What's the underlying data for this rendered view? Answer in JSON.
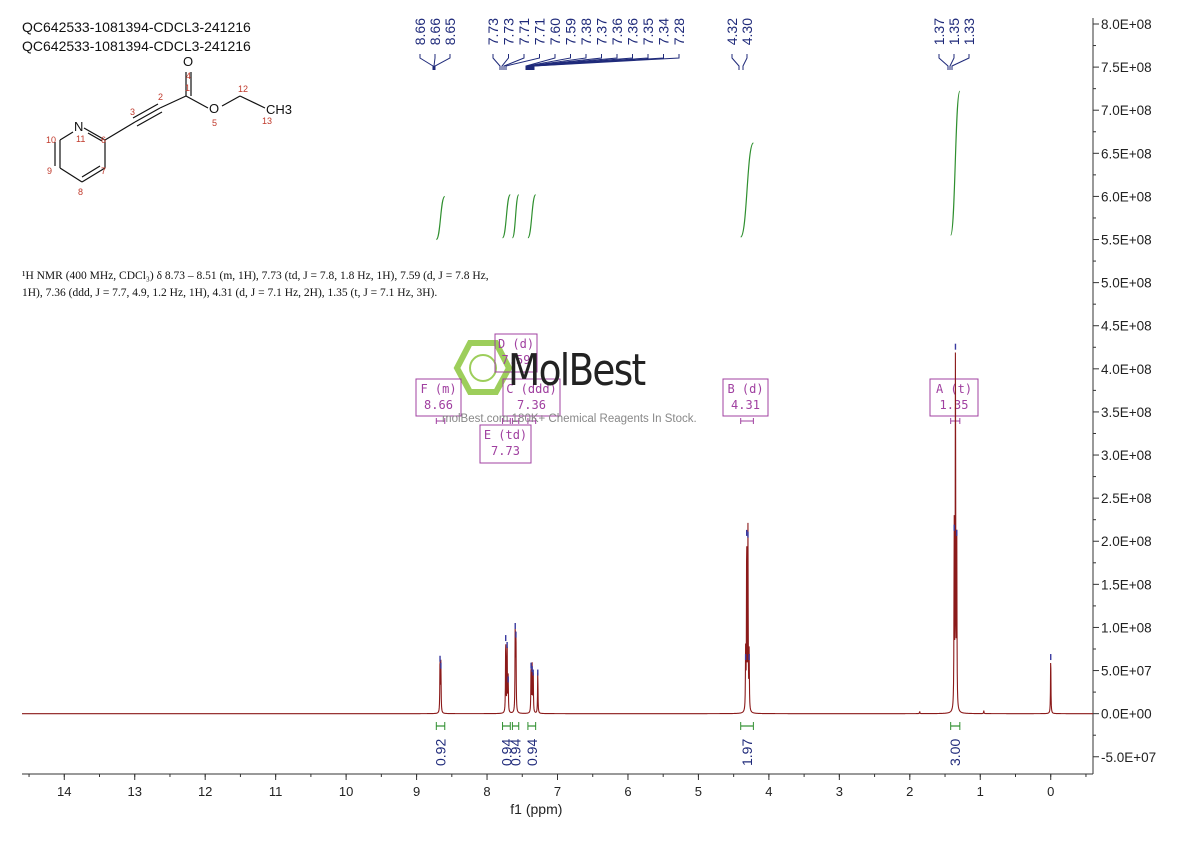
{
  "header": {
    "line1": "QC642533-1081394-CDCL3-241216",
    "line2": "QC642533-1081394-CDCL3-241216"
  },
  "molecule": {
    "atoms": [
      "O",
      "O",
      "N",
      "CH3"
    ],
    "numbers": [
      "4",
      "1",
      "2",
      "3",
      "5",
      "12",
      "13",
      "10",
      "11",
      "6",
      "9",
      "7",
      "8"
    ]
  },
  "nmr_description": {
    "line1": "¹H NMR (400 MHz, CDCl₃) δ 8.73 – 8.51 (m, 1H), 7.73 (td, J = 7.8, 1.8 Hz, 1H), 7.59 (d, J = 7.8 Hz,",
    "line2": "1H), 7.36 (ddd, J = 7.7, 4.9, 1.2 Hz, 1H), 4.31 (d, J = 7.1 Hz, 2H), 1.35 (t, J = 7.1 Hz, 3H)."
  },
  "watermark": {
    "brand": "MolBest",
    "tagline": "molBest.com 180K+ Chemical Reagents In Stock."
  },
  "colors": {
    "spectrum": "#8b1a1a",
    "integral": "#2f8f2f",
    "peak_label": "#1f2a7a",
    "multiplet_box": "#a040a0",
    "watermark_green": "#8dc63f"
  },
  "chart_data": {
    "type": "line",
    "xlabel": "f1 (ppm)",
    "xlim": [
      14.6,
      -0.6
    ],
    "ylim": [
      -70000000,
      800000000
    ],
    "x_ticks": [
      14,
      13,
      12,
      11,
      10,
      9,
      8,
      7,
      6,
      5,
      4,
      3,
      2,
      1,
      0
    ],
    "y_ticks": [
      800000000,
      750000000,
      700000000,
      650000000,
      600000000,
      550000000,
      500000000,
      450000000,
      400000000,
      350000000,
      300000000,
      250000000,
      200000000,
      150000000,
      100000000,
      50000000,
      0,
      -50000000
    ],
    "y_tick_labels": [
      "8.0E+08",
      "7.5E+08",
      "7.0E+08",
      "6.5E+08",
      "6.0E+08",
      "5.5E+08",
      "5.0E+08",
      "4.5E+08",
      "4.0E+08",
      "3.5E+08",
      "3.0E+08",
      "2.5E+08",
      "2.0E+08",
      "1.5E+08",
      "1.0E+08",
      "5.0E+07",
      "0.0E+00",
      "-5.0E+07"
    ],
    "peaks": [
      {
        "ppm": 8.667,
        "height": 66000000
      },
      {
        "ppm": 8.655,
        "height": 58000000
      },
      {
        "ppm": 7.735,
        "height": 90000000
      },
      {
        "ppm": 7.715,
        "height": 82000000
      },
      {
        "ppm": 7.7,
        "height": 42000000
      },
      {
        "ppm": 7.6,
        "height": 104000000
      },
      {
        "ppm": 7.59,
        "height": 94000000
      },
      {
        "ppm": 7.375,
        "height": 58000000
      },
      {
        "ppm": 7.36,
        "height": 54000000
      },
      {
        "ppm": 7.345,
        "height": 50000000
      },
      {
        "ppm": 7.28,
        "height": 50000000
      },
      {
        "ppm": 4.33,
        "height": 68000000
      },
      {
        "ppm": 4.315,
        "height": 212000000
      },
      {
        "ppm": 4.297,
        "height": 210000000
      },
      {
        "ppm": 4.28,
        "height": 68000000
      },
      {
        "ppm": 1.37,
        "height": 218000000
      },
      {
        "ppm": 1.352,
        "height": 428000000
      },
      {
        "ppm": 1.334,
        "height": 212000000
      },
      {
        "ppm": 1.86,
        "height": 2500000
      },
      {
        "ppm": 0.95,
        "height": 3500000
      },
      {
        "ppm": 0.0,
        "height": 68000000
      }
    ],
    "peak_labels_group1": [
      "8.66",
      "8.66",
      "8.65"
    ],
    "peak_labels_group2": [
      "7.73",
      "7.73",
      "7.71",
      "7.71",
      "7.60",
      "7.59",
      "7.38",
      "7.37",
      "7.36",
      "7.36",
      "7.35",
      "7.34",
      "7.28"
    ],
    "peak_labels_group3": [
      "4.32",
      "4.30"
    ],
    "peak_labels_group4": [
      "1.37",
      "1.35",
      "1.33"
    ],
    "integrals": [
      {
        "from": 8.72,
        "to": 8.6,
        "value": "0.92",
        "y_low": 550000000,
        "y_high": 600000000
      },
      {
        "from": 7.78,
        "to": 7.67,
        "value": "0.94",
        "y_low": 552000000,
        "y_high": 602000000
      },
      {
        "from": 7.64,
        "to": 7.55,
        "value": "0.94",
        "y_low": 552000000,
        "y_high": 602000000
      },
      {
        "from": 7.42,
        "to": 7.31,
        "value": "0.94",
        "y_low": 552000000,
        "y_high": 602000000
      },
      {
        "from": 4.4,
        "to": 4.22,
        "value": "1.97",
        "y_low": 553000000,
        "y_high": 662000000
      },
      {
        "from": 1.42,
        "to": 1.29,
        "value": "3.00",
        "y_low": 555000000,
        "y_high": 722000000
      }
    ],
    "multiplets": [
      {
        "label": "F (m)",
        "shift": "8.66",
        "ppm": 8.66,
        "from": 8.72,
        "to": 8.6
      },
      {
        "label": "D (d)",
        "shift": "7.59",
        "ppm": 7.59,
        "from": 7.64,
        "to": 7.55
      },
      {
        "label": "C (ddd)",
        "shift": "7.36",
        "ppm": 7.36,
        "from": 7.42,
        "to": 7.31
      },
      {
        "label": "E (td)",
        "shift": "7.73",
        "ppm": 7.73,
        "from": 7.78,
        "to": 7.67
      },
      {
        "label": "B (d)",
        "shift": "4.31",
        "ppm": 4.31,
        "from": 4.4,
        "to": 4.22
      },
      {
        "label": "A (t)",
        "shift": "1.35",
        "ppm": 1.35,
        "from": 1.42,
        "to": 1.29
      }
    ]
  }
}
